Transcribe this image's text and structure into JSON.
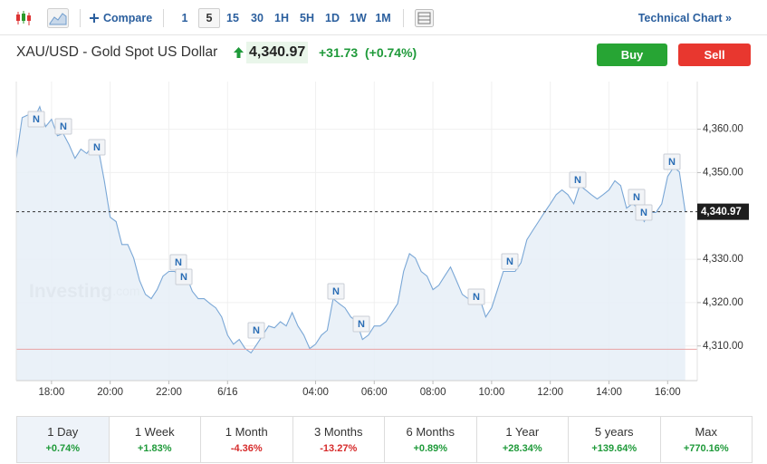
{
  "toolbar": {
    "compare": "Compare",
    "intervals": [
      "1",
      "5",
      "15",
      "30",
      "1H",
      "5H",
      "1D",
      "1W",
      "1M"
    ],
    "selected_interval": "5",
    "technical_chart": "Technical Chart »"
  },
  "header": {
    "symbol": "XAU/USD - Gold Spot US Dollar",
    "price": "4,340.97",
    "change": "+31.73",
    "change_percent": "(+0.74%)",
    "buy": "Buy",
    "sell": "Sell"
  },
  "chart_data": {
    "type": "area",
    "color": "#7aa7d6",
    "categories": [
      null,
      null,
      null,
      null,
      null,
      null,
      "18:00",
      null,
      null,
      null,
      null,
      null,
      null,
      null,
      null,
      null,
      "20:00",
      null,
      null,
      null,
      null,
      null,
      null,
      null,
      null,
      null,
      "22:00",
      null,
      null,
      null,
      null,
      null,
      null,
      null,
      null,
      null,
      "6/16",
      null,
      null,
      null,
      null,
      null,
      null,
      null,
      null,
      null,
      null,
      null,
      null,
      null,
      null,
      "04:00",
      null,
      null,
      null,
      null,
      null,
      null,
      null,
      null,
      null,
      "06:00",
      null,
      null,
      null,
      null,
      null,
      null,
      null,
      null,
      null,
      "08:00",
      null,
      null,
      null,
      null,
      null,
      null,
      null,
      null,
      null,
      "10:00",
      null,
      null,
      null,
      null,
      null,
      null,
      null,
      null,
      null,
      "12:00",
      null,
      null,
      null,
      null,
      null,
      null,
      null,
      null,
      null,
      "14:00",
      null,
      null,
      null,
      null,
      null,
      null,
      null,
      null,
      null,
      "16:00",
      null,
      null,
      null
    ],
    "values": [
      4353.3,
      4362.7,
      4363.3,
      4362.3,
      4365.2,
      4360.6,
      4362.3,
      4358.5,
      4359.0,
      4356.4,
      4353.3,
      4355.4,
      4354.4,
      4356.4,
      4355.4,
      4348.1,
      4339.7,
      4338.7,
      4333.4,
      4333.4,
      4330.3,
      4325.1,
      4321.9,
      4320.9,
      4323.0,
      4326.1,
      4327.2,
      4327.2,
      4325.1,
      4326.1,
      4322.6,
      4320.9,
      4320.9,
      4319.8,
      4318.8,
      4316.7,
      4312.5,
      4310.4,
      4311.5,
      4309.4,
      4308.4,
      4310.4,
      4312.5,
      4314.6,
      4314.2,
      4315.6,
      4314.6,
      4317.7,
      4314.6,
      4312.5,
      4309.4,
      4310.4,
      4312.5,
      4313.6,
      4320.9,
      4319.8,
      4318.8,
      4316.7,
      4315.6,
      4311.5,
      4312.5,
      4314.6,
      4314.6,
      4315.6,
      4317.7,
      4319.8,
      4327.2,
      4331.3,
      4330.3,
      4327.2,
      4326.1,
      4323.0,
      4324.0,
      4326.1,
      4328.2,
      4325.1,
      4321.9,
      4320.9,
      4319.8,
      4320.9,
      4316.7,
      4318.8,
      4323.0,
      4327.2,
      4327.2,
      4327.2,
      4329.2,
      4334.5,
      4336.6,
      4338.7,
      4340.8,
      4342.8,
      4344.9,
      4346.0,
      4344.9,
      4342.8,
      4347.0,
      4346.0,
      4344.9,
      4343.9,
      4344.9,
      4346.0,
      4348.1,
      4347.0,
      4341.8,
      4342.8,
      4341.8,
      4338.7,
      4340.8,
      4340.8,
      4342.8,
      4349.1,
      4351.2,
      4350.2,
      4341.0
    ],
    "ylim": [
      4302,
      4371
    ],
    "yticks": [
      {
        "value": 4310,
        "label": "4,310.00"
      },
      {
        "value": 4320,
        "label": "4,320.00"
      },
      {
        "value": 4330,
        "label": "4,330.00"
      },
      {
        "value": 4350,
        "label": "4,350.00"
      },
      {
        "value": 4360,
        "label": "4,360.00"
      }
    ],
    "grid": true,
    "current_price": {
      "value": 4340.97,
      "label": "4,340.97"
    },
    "reference_line": 4309.24,
    "news_marker": "N",
    "watermark": [
      "Investing",
      ".com"
    ]
  },
  "periods": [
    {
      "label": "1 Day",
      "change": "+0.74%"
    },
    {
      "label": "1 Week",
      "change": "+1.83%"
    },
    {
      "label": "1 Month",
      "change": "-4.36%"
    },
    {
      "label": "3 Months",
      "change": "-13.27%"
    },
    {
      "label": "6 Months",
      "change": "+0.89%"
    },
    {
      "label": "1 Year",
      "change": "+28.34%"
    },
    {
      "label": "5 years",
      "change": "+139.64%"
    },
    {
      "label": "Max",
      "change": "+770.16%"
    }
  ],
  "selected_period": "1 Day"
}
